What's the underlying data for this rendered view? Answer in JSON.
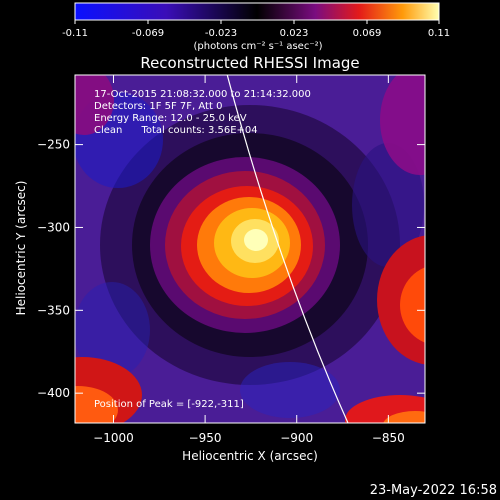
{
  "colorbar": {
    "ticks": [
      "-0.11",
      "-0.069",
      "-0.023",
      "0.023",
      "0.069",
      "0.11"
    ],
    "unit_label": "(photons cm⁻² s⁻¹ asec⁻²)",
    "range": [
      -0.11,
      0.11
    ]
  },
  "chart_data": {
    "type": "heatmap",
    "title": "Reconstructed RHESSI Image",
    "xlabel": "Heliocentric X (arcsec)",
    "ylabel": "Heliocentric Y (arcsec)",
    "xlim": [
      -1021,
      -830
    ],
    "ylim": [
      -418,
      -208
    ],
    "xticks": [
      -1000,
      -950,
      -900,
      -850
    ],
    "xtick_labels": [
      "−1000",
      "−950",
      "−900",
      "−850"
    ],
    "yticks": [
      -250,
      -300,
      -350,
      -400
    ],
    "ytick_labels": [
      "−250",
      "−300",
      "−350",
      "−400"
    ],
    "peak": [
      -922,
      -311
    ],
    "peak_value": 0.11,
    "annotations": [
      "17-Oct-2015 21:08:32.000 to 21:14:32.000",
      "Detectors: 1F 5F 7F, Att 0",
      "Energy Range: 12.0 - 25.0 keV",
      "Clean      Total counts: 3.56E+04"
    ],
    "peak_label": "Position of Peak = [-922,-311]",
    "limb_arc": true
  },
  "footer": {
    "date": "23-May-2022 16:58"
  }
}
